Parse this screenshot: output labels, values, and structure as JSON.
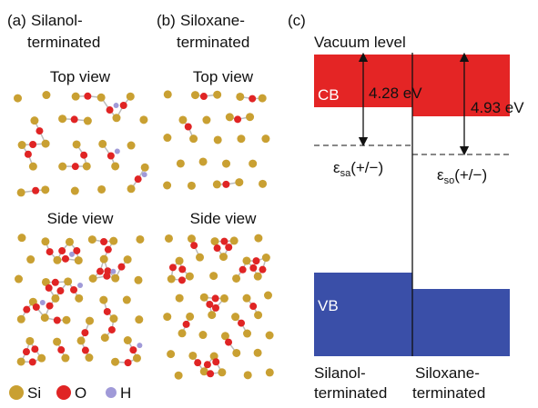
{
  "panel_a": {
    "label": "(a)",
    "title_line1": "Silanol-",
    "title_line2": "terminated",
    "top_view": "Top view",
    "side_view": "Side view"
  },
  "panel_b": {
    "label": "(b)",
    "title_line1": "Siloxane-",
    "title_line2": "terminated",
    "top_view": "Top view",
    "side_view": "Side view"
  },
  "panel_c": {
    "label": "(c)",
    "vacuum_level": "Vacuum level",
    "cb": "CB",
    "vb": "VB",
    "gap_left": "4.28 eV",
    "gap_right": "4.93 eV",
    "level_left": {
      "symbol": "ε",
      "sub": "sa",
      "suffix": "(+/−)"
    },
    "level_right": {
      "symbol": "ε",
      "sub": "so",
      "suffix": "(+/−)"
    },
    "bottom_left": [
      "Silanol-",
      "terminated"
    ],
    "bottom_right": [
      "Siloxane-",
      "terminated"
    ]
  },
  "legend": [
    "Si",
    "O",
    "H"
  ]
}
